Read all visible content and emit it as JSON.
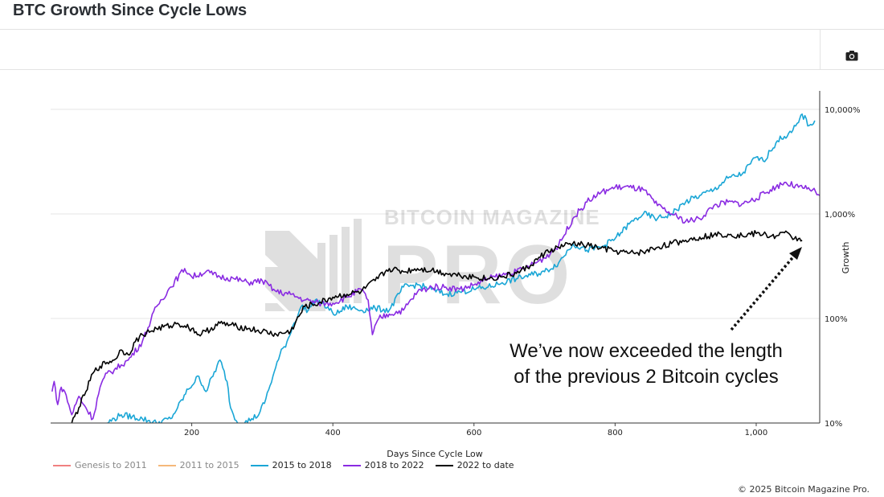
{
  "header": {
    "title": "BTC Growth Since Cycle Lows"
  },
  "toolbar": {
    "camera_icon": "camera-icon"
  },
  "footer": {
    "copyright": "© 2025 Bitcoin Magazine Pro."
  },
  "watermark": {
    "line1": "BITCOIN MAGAZINE",
    "line2": "PRO"
  },
  "annotation": {
    "line1": "We’ve now exceeded the length",
    "line2": "of the previous 2 Bitcoin cycles"
  },
  "chart_data": {
    "type": "line",
    "xlabel": "Days Since Cycle Low",
    "ylabel": "Growth",
    "y_scale": "log",
    "xlim": [
      0,
      1090
    ],
    "ylim": [
      10,
      14500
    ],
    "x_ticks": [
      200,
      400,
      600,
      800,
      1000
    ],
    "x_tick_labels": [
      "200",
      "400",
      "600",
      "800",
      "1,000"
    ],
    "y_ticks": [
      10,
      100,
      1000,
      10000
    ],
    "y_tick_labels": [
      "10%",
      "100%",
      "1,000%",
      "10,000%"
    ],
    "grid": true,
    "legend_position": "bottom-left",
    "series": [
      {
        "name": "Genesis to 2011",
        "color": "#f08080",
        "x": [],
        "y": []
      },
      {
        "name": "2011 to 2015",
        "color": "#f5b87a",
        "x": [],
        "y": []
      },
      {
        "name": "2015 to 2018",
        "color": "#1aa6d6",
        "x": [
          80,
          100,
          130,
          150,
          170,
          180,
          195,
          210,
          220,
          240,
          250,
          255,
          265,
          275,
          285,
          295,
          305,
          315,
          325,
          335,
          345,
          355,
          365,
          375,
          385,
          395,
          405,
          420,
          440,
          460,
          480,
          500,
          520,
          540,
          560,
          580,
          600,
          620,
          640,
          660,
          680,
          700,
          720,
          740,
          760,
          780,
          800,
          820,
          840,
          860,
          880,
          900,
          920,
          940,
          960,
          980,
          1000,
          1010,
          1020,
          1030,
          1040,
          1050,
          1060,
          1065,
          1075,
          1083
        ],
        "y": [
          10,
          12,
          11,
          10,
          11,
          14,
          21,
          28,
          20,
          40,
          25,
          14,
          10,
          10,
          11,
          12,
          17,
          28,
          45,
          60,
          90,
          130,
          120,
          150,
          140,
          120,
          110,
          130,
          120,
          125,
          120,
          200,
          210,
          190,
          170,
          180,
          190,
          200,
          220,
          240,
          260,
          280,
          340,
          520,
          450,
          480,
          580,
          800,
          1000,
          900,
          1000,
          1300,
          1500,
          1700,
          2200,
          2400,
          3500,
          3200,
          4000,
          5000,
          5500,
          6000,
          7500,
          9000,
          7000,
          7800
        ]
      },
      {
        "name": "2018 to 2022",
        "color": "#8a2be2",
        "x": [
          2,
          5,
          10,
          15,
          20,
          30,
          40,
          50,
          60,
          70,
          80,
          90,
          100,
          110,
          130,
          150,
          170,
          190,
          200,
          220,
          240,
          260,
          280,
          300,
          320,
          340,
          360,
          380,
          400,
          420,
          440,
          450,
          456,
          465,
          480,
          500,
          520,
          540,
          560,
          580,
          600,
          620,
          640,
          660,
          680,
          700,
          720,
          740,
          760,
          780,
          800,
          820,
          840,
          860,
          880,
          900,
          920,
          940,
          960,
          980,
          1000,
          1020,
          1040,
          1060,
          1080,
          1090
        ],
        "y": [
          20,
          25,
          15,
          22,
          20,
          12,
          18,
          14,
          11,
          22,
          30,
          32,
          36,
          40,
          60,
          130,
          200,
          300,
          250,
          280,
          250,
          240,
          220,
          230,
          180,
          170,
          150,
          140,
          140,
          160,
          190,
          150,
          70,
          100,
          110,
          120,
          180,
          200,
          200,
          190,
          210,
          240,
          260,
          280,
          320,
          380,
          500,
          900,
          1300,
          1600,
          1800,
          1800,
          1700,
          1200,
          1000,
          850,
          900,
          1200,
          1300,
          1250,
          1400,
          1700,
          2000,
          1800,
          1700,
          1500
        ]
      },
      {
        "name": "2022 to date",
        "color": "#000000",
        "x": [
          30,
          40,
          50,
          60,
          70,
          80,
          90,
          100,
          110,
          120,
          130,
          150,
          170,
          180,
          190,
          200,
          210,
          220,
          240,
          260,
          280,
          300,
          320,
          340,
          360,
          380,
          400,
          420,
          440,
          460,
          480,
          500,
          520,
          540,
          560,
          580,
          600,
          620,
          640,
          660,
          680,
          700,
          720,
          740,
          760,
          780,
          800,
          820,
          840,
          860,
          880,
          900,
          920,
          940,
          960,
          980,
          1000,
          1010,
          1020,
          1030,
          1040,
          1050,
          1060,
          1065
        ],
        "y": [
          10,
          14,
          20,
          30,
          35,
          38,
          40,
          50,
          45,
          60,
          70,
          80,
          85,
          90,
          85,
          80,
          70,
          75,
          90,
          85,
          80,
          75,
          70,
          75,
          130,
          140,
          160,
          170,
          180,
          230,
          300,
          280,
          300,
          290,
          270,
          260,
          250,
          240,
          250,
          270,
          320,
          420,
          480,
          520,
          500,
          470,
          440,
          420,
          430,
          480,
          520,
          560,
          600,
          630,
          640,
          620,
          650,
          640,
          610,
          620,
          660,
          600,
          580,
          560
        ]
      }
    ]
  }
}
